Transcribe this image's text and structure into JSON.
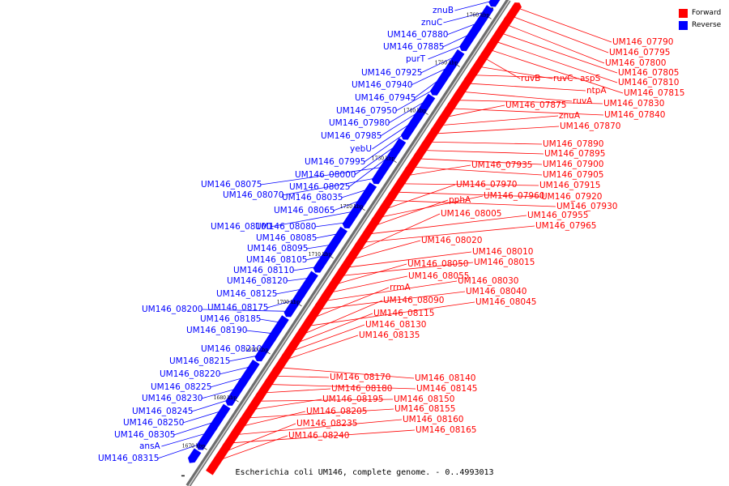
{
  "caption": "Escherichia coli UM146, complete genome. - 0..4993013",
  "legend": [
    {
      "label": "Forward",
      "color": "#ff0000"
    },
    {
      "label": "Reverse",
      "color": "#0000ff"
    }
  ],
  "colors": {
    "forward": "#ff0000",
    "reverse": "#0000ff",
    "backbone": "#9a9a9a",
    "tick": "#000000"
  },
  "ticks": [
    "1670 kbp",
    "1680 kbp",
    "1690 kbp",
    "1700 kbp",
    "1710 kbp",
    "1720 kbp",
    "1730 kbp",
    "1740 kbp",
    "1750 kbp",
    "1760 kbp"
  ],
  "reverse_genes": [
    "znuB",
    "znuC",
    "UM146_07880",
    "UM146_07885",
    "purT",
    "UM146_07925",
    "UM146_07940",
    "UM146_07945",
    "UM146_07950",
    "UM146_07980",
    "UM146_07985",
    "yebU",
    "UM146_07995",
    "UM146_08000",
    "UM146_08025",
    "UM146_08075",
    "UM146_08070",
    "UM146_08035",
    "UM146_08065",
    "UM146_08100",
    "UM146_08080",
    "UM146_08085",
    "UM146_08095",
    "UM146_08105",
    "UM146_08110",
    "UM146_08120",
    "UM146_08125",
    "UM146_08175",
    "UM146_08200",
    "UM146_08185",
    "UM146_08190",
    "UM146_08210",
    "UM146_08215",
    "UM146_08220",
    "UM146_08225",
    "UM146_08230",
    "UM146_08245",
    "UM146_08250",
    "UM146_08305",
    "ansA",
    "UM146_08315"
  ],
  "forward_genes": [
    "UM146_07790",
    "UM146_07795",
    "UM146_07800",
    "UM146_07805",
    "UM146_07810",
    "UM146_07815",
    "ruvB",
    "ruvC",
    "aspS",
    "ntpA",
    "ruvA",
    "UM146_07830",
    "UM146_07840",
    "UM146_07875",
    "znuA",
    "UM146_07870",
    "UM146_07890",
    "UM146_07895",
    "UM146_07900",
    "UM146_07905",
    "UM146_07935",
    "UM146_07915",
    "UM146_07920",
    "UM146_07930",
    "UM146_07970",
    "UM146_07960",
    "pphA",
    "UM146_07955",
    "UM146_07965",
    "UM146_08005",
    "UM146_08020",
    "UM146_08010",
    "UM146_08015",
    "UM146_08050",
    "UM146_08055",
    "UM146_08030",
    "UM146_08040",
    "rrmA",
    "UM146_08045",
    "UM146_08090",
    "UM146_08115",
    "UM146_08130",
    "UM146_08135",
    "UM146_08140",
    "UM146_08170",
    "UM146_08145",
    "UM146_08180",
    "UM146_08150",
    "UM146_08195",
    "UM146_08155",
    "UM146_08205",
    "UM146_08160",
    "UM146_08165",
    "UM146_08235",
    "UM146_08240"
  ]
}
